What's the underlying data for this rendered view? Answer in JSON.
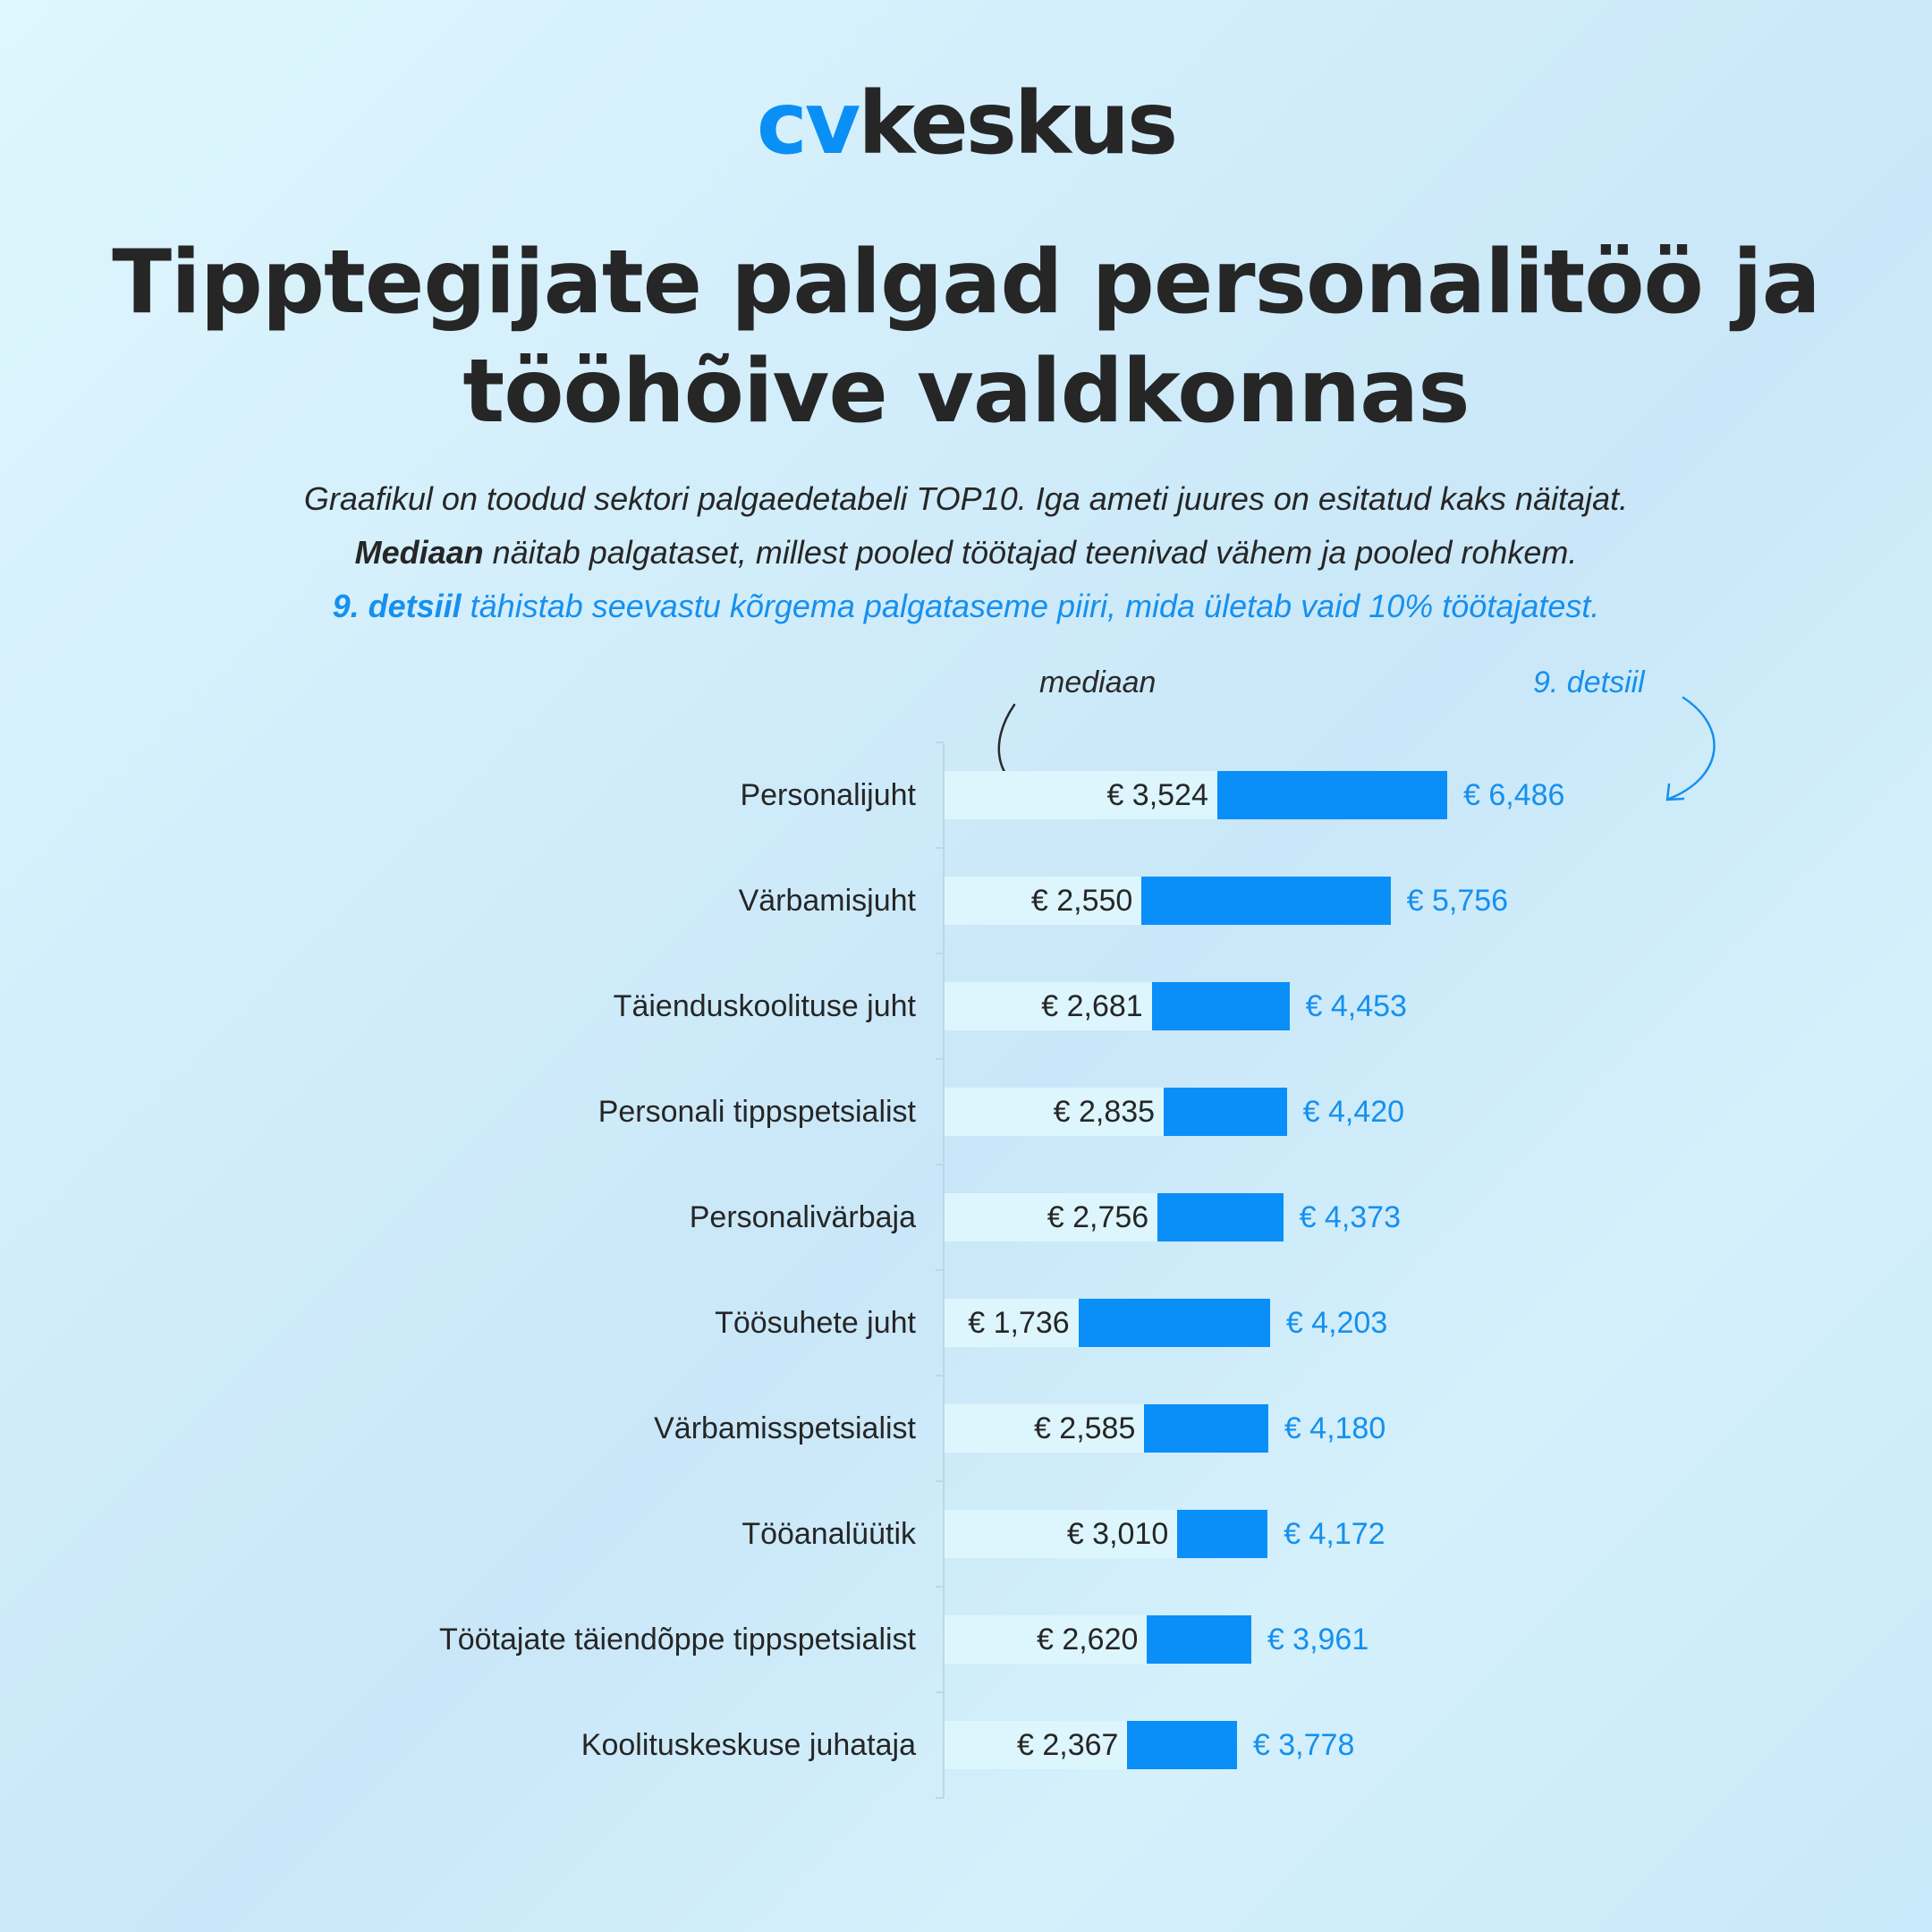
{
  "brand": {
    "logo_cv": "cv",
    "logo_rest": "keskus",
    "accent_color": "#0a8ff8"
  },
  "header": {
    "title_line1": "Tipptegijate palgad personalitöö ja",
    "title_line2": "tööhõive valdkonnas"
  },
  "subtitle": {
    "line1": "Graafikul on toodud sektori palgaedetabeli TOP10. Iga ameti juures on esitatud kaks näitajat.",
    "line2_bold": "Mediaan",
    "line2_rest": " näitab palgataset, millest pooled töötajad teenivad vähem ja pooled rohkem.",
    "line3_bold": "9. detsiil",
    "line3_rest": " tähistab seevastu kõrgema palgataseme piiri, mida ületab vaid 10% töötajatest."
  },
  "annotations": {
    "median": "mediaan",
    "decile": "9. detsiil"
  },
  "rows": [
    {
      "label": "Personalijuht",
      "median": "€ 3,524",
      "decile": "€ 6,486"
    },
    {
      "label": "Värbamisjuht",
      "median": "€ 2,550",
      "decile": "€ 5,756"
    },
    {
      "label": "Täienduskoolituse juht",
      "median": "€ 2,681",
      "decile": "€ 4,453"
    },
    {
      "label": "Personali tippspetsialist",
      "median": "€ 2,835",
      "decile": "€ 4,420"
    },
    {
      "label": "Personalivärbaja",
      "median": "€ 2,756",
      "decile": "€ 4,373"
    },
    {
      "label": "Töösuhete juht",
      "median": "€ 1,736",
      "decile": "€ 4,203"
    },
    {
      "label": "Värbamisspetsialist",
      "median": "€ 2,585",
      "decile": "€ 4,180"
    },
    {
      "label": "Tööanalüütik",
      "median": "€ 3,010",
      "decile": "€ 4,172"
    },
    {
      "label": "Töötajate täiendõppe tippspetsialist",
      "median": "€ 2,620",
      "decile": "€ 3,961"
    },
    {
      "label": "Koolituskeskuse juhataja",
      "median": "€ 2,367",
      "decile": "€ 3,778"
    }
  ],
  "chart_data": {
    "type": "bar",
    "orientation": "horizontal",
    "title": "Tipptegijate palgad personalitöö ja tööhõive valdkonnas",
    "subtitle": "Graafikul on toodud sektori palgaedetabeli TOP10. Iga ameti juures on esitatud kaks näitajat.",
    "categories": [
      "Personalijuht",
      "Värbamisjuht",
      "Täienduskoolituse juht",
      "Personali tippspetsialist",
      "Personalivärbaja",
      "Töösuhete juht",
      "Värbamisspetsialist",
      "Tööanalüütik",
      "Töötajate täiendõppe tippspetsialist",
      "Koolituskeskuse juhataja"
    ],
    "series": [
      {
        "name": "mediaan",
        "color": "#ddf6fe",
        "values": [
          3524,
          2550,
          2681,
          2835,
          2756,
          1736,
          2585,
          3010,
          2620,
          2367
        ]
      },
      {
        "name": "9. detsiil",
        "color": "#0a8ff8",
        "values": [
          6486,
          5756,
          4453,
          4420,
          4373,
          4203,
          4180,
          4172,
          3961,
          3778
        ]
      }
    ],
    "currency": "€",
    "xlabel": "",
    "ylabel": "",
    "xlim": [
      0,
      6486
    ],
    "grid": false,
    "legend": "annotations (mediaan, 9. detsiil) above first row"
  }
}
